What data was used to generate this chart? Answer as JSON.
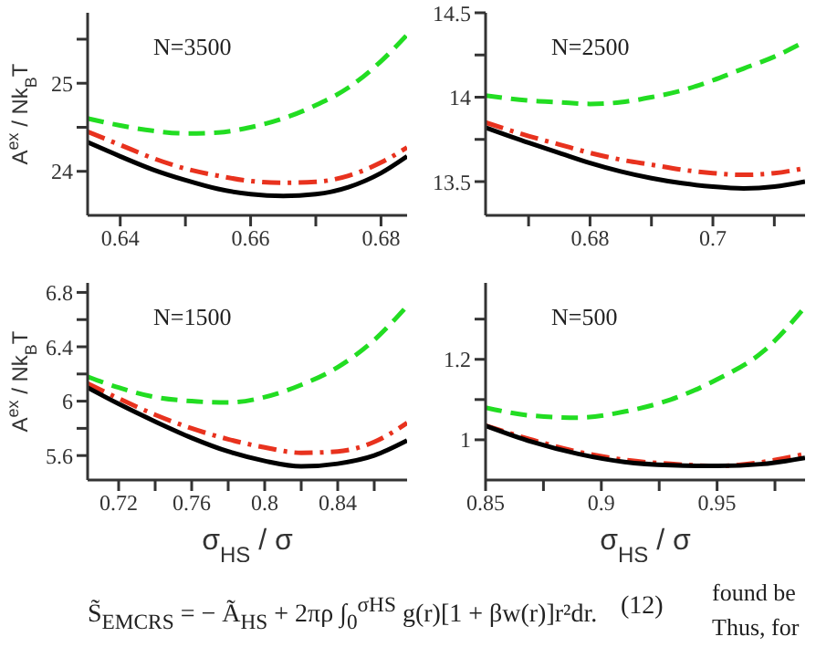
{
  "chart_data": [
    {
      "type": "line",
      "ylabel": "A$^{ex}$ / Nk$_{B}$T",
      "annotations": [
        "N=3500"
      ],
      "x": [
        0.635,
        0.64,
        0.645,
        0.65,
        0.655,
        0.66,
        0.665,
        0.67,
        0.675,
        0.68,
        0.684
      ],
      "xlim": [
        0.635,
        0.684
      ],
      "ylim": [
        23.5,
        25.8
      ],
      "xticks": [
        0.64,
        {
          "value": 0.65,
          "label": null
        },
        0.66,
        {
          "value": 0.67,
          "label": null
        },
        0.68
      ],
      "yticks": [
        24,
        {
          "value": 24.5,
          "label": null
        },
        25,
        {
          "value": 25.5,
          "label": null
        }
      ],
      "series": [
        {
          "color": "#22dd22",
          "line_style": "dashed",
          "values": [
            24.6,
            24.52,
            24.46,
            24.43,
            24.44,
            24.5,
            24.6,
            24.75,
            24.95,
            25.25,
            25.55
          ]
        },
        {
          "color": "#e8321e",
          "line_style": "dashdot",
          "values": [
            24.45,
            24.3,
            24.15,
            24.03,
            23.95,
            23.89,
            23.87,
            23.88,
            23.95,
            24.1,
            24.27
          ]
        },
        {
          "color": "#000000",
          "line_style": "solid",
          "values": [
            24.33,
            24.17,
            24.02,
            23.9,
            23.8,
            23.74,
            23.72,
            23.74,
            23.82,
            23.98,
            24.17
          ]
        }
      ]
    },
    {
      "type": "line",
      "annotations": [
        "N=2500"
      ],
      "x": [
        0.663,
        0.67,
        0.675,
        0.68,
        0.685,
        0.69,
        0.695,
        0.7,
        0.705,
        0.71,
        0.715
      ],
      "xlim": [
        0.663,
        0.715
      ],
      "ylim": [
        13.3,
        14.5
      ],
      "xticks": [
        {
          "value": 0.67,
          "label": null
        },
        0.68,
        {
          "value": 0.69,
          "label": null
        },
        0.7,
        {
          "value": 0.71,
          "label": null
        }
      ],
      "yticks": [
        13.5,
        {
          "value": 13.75,
          "label": null
        },
        14,
        {
          "value": 14.25,
          "label": null
        },
        14.5
      ],
      "series": [
        {
          "color": "#22dd22",
          "line_style": "dashed",
          "values": [
            14.01,
            13.98,
            13.97,
            13.96,
            13.97,
            14.0,
            14.04,
            14.1,
            14.17,
            14.24,
            14.33
          ]
        },
        {
          "color": "#e8321e",
          "line_style": "dashdot",
          "values": [
            13.85,
            13.77,
            13.72,
            13.67,
            13.63,
            13.6,
            13.57,
            13.55,
            13.54,
            13.55,
            13.58
          ]
        },
        {
          "color": "#000000",
          "line_style": "solid",
          "values": [
            13.82,
            13.73,
            13.67,
            13.61,
            13.56,
            13.52,
            13.49,
            13.47,
            13.46,
            13.47,
            13.5
          ]
        }
      ]
    },
    {
      "type": "line",
      "ylabel": "A$^{ex}$ / Nk$_{B}$T",
      "xlabel": "σ$_{HS}$ / σ",
      "annotations": [
        "N=1500"
      ],
      "x": [
        0.703,
        0.72,
        0.74,
        0.76,
        0.78,
        0.8,
        0.82,
        0.84,
        0.86,
        0.878
      ],
      "xlim": [
        0.703,
        0.878
      ],
      "ylim": [
        5.42,
        6.87
      ],
      "xticks": [
        0.72,
        {
          "value": 0.74,
          "label": null
        },
        0.76,
        {
          "value": 0.78,
          "label": null
        },
        0.8,
        {
          "value": 0.82,
          "label": null
        },
        0.84,
        {
          "value": 0.86,
          "label": null
        }
      ],
      "yticks": [
        5.6,
        {
          "value": 5.8,
          "label": null
        },
        6,
        {
          "value": 6.2,
          "label": null
        },
        6.4,
        {
          "value": 6.6,
          "label": null
        },
        6.8
      ],
      "series": [
        {
          "color": "#22dd22",
          "line_style": "dashed",
          "values": [
            6.18,
            6.1,
            6.03,
            6.0,
            5.99,
            6.03,
            6.12,
            6.25,
            6.45,
            6.7
          ]
        },
        {
          "color": "#e8321e",
          "line_style": "dashdot",
          "values": [
            6.13,
            6.02,
            5.9,
            5.8,
            5.72,
            5.66,
            5.62,
            5.63,
            5.7,
            5.84
          ]
        },
        {
          "color": "#000000",
          "line_style": "solid",
          "values": [
            6.1,
            5.98,
            5.85,
            5.73,
            5.63,
            5.56,
            5.52,
            5.54,
            5.6,
            5.71
          ]
        }
      ]
    },
    {
      "type": "line",
      "xlabel": "σ$_{HS}$ / σ",
      "annotations": [
        "N=500"
      ],
      "x": [
        0.85,
        0.87,
        0.89,
        0.91,
        0.93,
        0.95,
        0.97,
        0.988
      ],
      "xlim": [
        0.85,
        0.988
      ],
      "ylim": [
        0.9,
        1.39
      ],
      "xticks": [
        0.85,
        {
          "value": 0.875,
          "label": null
        },
        0.9,
        {
          "value": 0.925,
          "label": null
        },
        0.95,
        {
          "value": 0.975,
          "label": null
        }
      ],
      "yticks": [
        1,
        {
          "value": 1.1,
          "label": null
        },
        1.2,
        {
          "value": 1.3,
          "label": null
        }
      ],
      "series": [
        {
          "color": "#22dd22",
          "line_style": "dashed",
          "values": [
            1.08,
            1.06,
            1.055,
            1.07,
            1.1,
            1.15,
            1.22,
            1.33
          ]
        },
        {
          "color": "#e8321e",
          "line_style": "dashdot",
          "values": [
            1.035,
            1.0,
            0.97,
            0.95,
            0.94,
            0.935,
            0.945,
            0.965
          ]
        },
        {
          "color": "#000000",
          "line_style": "solid",
          "values": [
            1.035,
            0.995,
            0.965,
            0.945,
            0.937,
            0.935,
            0.94,
            0.955
          ]
        }
      ]
    },
    {
      "type": "other",
      "annotations": [
        "S̃$_{EMCRS}$ = − Ã$_{HS}$ + 2πρ ∫$_{0}$$^{σHS}$ g(r)[1 + βw(r)]r²dr.",
        "(12)",
        "found be",
        "Thus, for"
      ]
    }
  ]
}
